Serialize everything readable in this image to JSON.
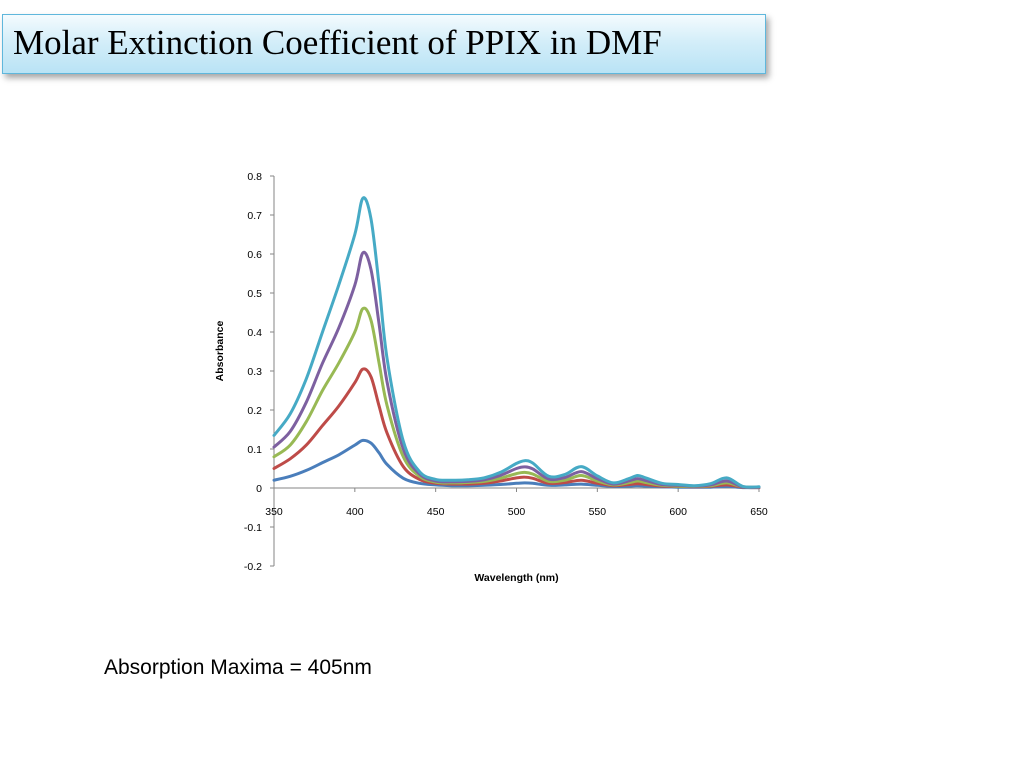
{
  "slide": {
    "title": "Molar Extinction Coefficient of PPIX in DMF",
    "footnote": "Absorption Maxima = 405nm"
  },
  "chart_data": {
    "type": "line",
    "xlabel": "Wavelength (nm)",
    "ylabel": "Absorbance",
    "xlim": [
      350,
      650
    ],
    "ylim": [
      -0.2,
      0.8
    ],
    "x_ticks": [
      350,
      400,
      450,
      500,
      550,
      600,
      650
    ],
    "y_ticks": [
      -0.2,
      -0.1,
      0,
      0.1,
      0.2,
      0.3,
      0.4,
      0.5,
      0.6,
      0.7,
      0.8
    ],
    "grid": false,
    "legend": "none",
    "x": [
      350,
      360,
      370,
      380,
      390,
      400,
      405,
      410,
      415,
      420,
      430,
      440,
      450,
      460,
      470,
      480,
      490,
      500,
      505,
      510,
      520,
      530,
      540,
      550,
      560,
      570,
      575,
      580,
      590,
      600,
      610,
      620,
      630,
      640,
      650
    ],
    "series": [
      {
        "color": "#4a7ebb",
        "values": [
          0.02,
          0.03,
          0.045,
          0.065,
          0.085,
          0.11,
          0.122,
          0.115,
          0.09,
          0.06,
          0.025,
          0.012,
          0.008,
          0.006,
          0.006,
          0.007,
          0.009,
          0.012,
          0.013,
          0.012,
          0.007,
          0.008,
          0.01,
          0.007,
          0.004,
          0.005,
          0.006,
          0.005,
          0.003,
          0.002,
          0.002,
          0.002,
          0.004,
          0.001,
          0.001
        ]
      },
      {
        "color": "#be4b48",
        "values": [
          0.05,
          0.075,
          0.11,
          0.16,
          0.21,
          0.27,
          0.305,
          0.285,
          0.21,
          0.14,
          0.055,
          0.022,
          0.012,
          0.01,
          0.01,
          0.012,
          0.018,
          0.026,
          0.028,
          0.025,
          0.012,
          0.014,
          0.02,
          0.012,
          0.006,
          0.009,
          0.011,
          0.009,
          0.005,
          0.004,
          0.003,
          0.004,
          0.008,
          0.002,
          0.001
        ]
      },
      {
        "color": "#98b954",
        "values": [
          0.08,
          0.11,
          0.17,
          0.25,
          0.32,
          0.4,
          0.46,
          0.43,
          0.32,
          0.21,
          0.08,
          0.03,
          0.015,
          0.013,
          0.014,
          0.017,
          0.025,
          0.037,
          0.04,
          0.036,
          0.017,
          0.02,
          0.032,
          0.018,
          0.008,
          0.014,
          0.018,
          0.014,
          0.007,
          0.005,
          0.004,
          0.006,
          0.013,
          0.003,
          0.002
        ]
      },
      {
        "color": "#7d60a0",
        "values": [
          0.105,
          0.145,
          0.22,
          0.32,
          0.41,
          0.52,
          0.603,
          0.56,
          0.42,
          0.27,
          0.1,
          0.036,
          0.018,
          0.016,
          0.017,
          0.021,
          0.032,
          0.05,
          0.054,
          0.049,
          0.023,
          0.027,
          0.042,
          0.024,
          0.01,
          0.019,
          0.024,
          0.019,
          0.009,
          0.007,
          0.005,
          0.008,
          0.018,
          0.003,
          0.002
        ]
      },
      {
        "color": "#46aac5",
        "values": [
          0.135,
          0.19,
          0.28,
          0.4,
          0.52,
          0.65,
          0.743,
          0.69,
          0.52,
          0.33,
          0.12,
          0.042,
          0.022,
          0.02,
          0.021,
          0.026,
          0.04,
          0.063,
          0.07,
          0.064,
          0.03,
          0.035,
          0.055,
          0.031,
          0.013,
          0.025,
          0.032,
          0.026,
          0.012,
          0.009,
          0.006,
          0.011,
          0.026,
          0.004,
          0.003
        ]
      }
    ]
  }
}
